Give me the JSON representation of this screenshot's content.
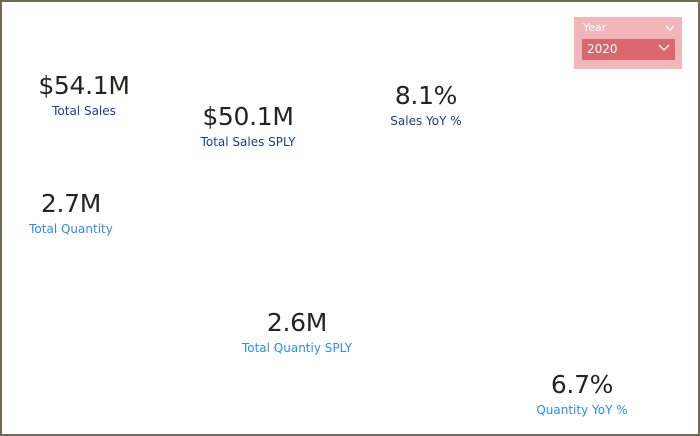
{
  "slicer": {
    "title": "Year",
    "selected": "2020"
  },
  "cards": {
    "total_sales": {
      "value": "$54.1M",
      "label": "Total Sales"
    },
    "total_sales_sply": {
      "value": "$50.1M",
      "label": "Total Sales SPLY"
    },
    "sales_yoy": {
      "value": "8.1%",
      "label": "Sales YoY %"
    },
    "total_quantity": {
      "value": "2.7M",
      "label": "Total Quantity"
    },
    "total_quantity_sply": {
      "value": "2.6M",
      "label": "Total Quantiy SPLY"
    },
    "quantity_yoy": {
      "value": "6.7%",
      "label": "Quantity YoY %"
    }
  },
  "colors": {
    "frame_border": "#6f6a54",
    "value_text": "#252423",
    "label_dark_blue": "#1f3c8c",
    "label_light_blue": "#2b8ee8",
    "slicer_bg": "#f0b6b9",
    "slicer_dropdown": "#d9676d"
  },
  "icons": {
    "slicer_header": "chevron-down-icon",
    "slicer_dropdown": "chevron-down-icon"
  }
}
